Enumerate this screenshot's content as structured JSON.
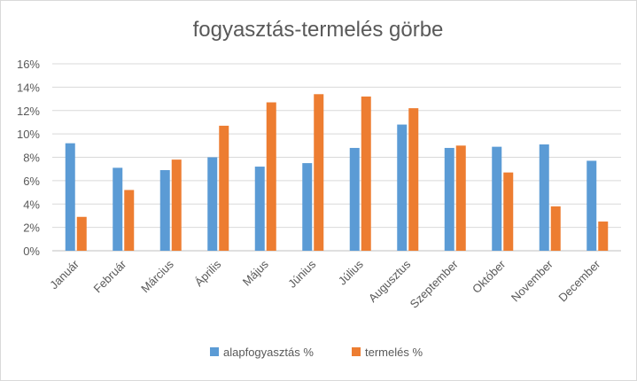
{
  "chart_data": {
    "type": "bar",
    "title": "fogyasztás-termelés görbe",
    "xlabel": "",
    "ylabel": "",
    "categories": [
      "Január",
      "Február",
      "Március",
      "Április",
      "Május",
      "Június",
      "Július",
      "Augusztus",
      "Szeptember",
      "Október",
      "November",
      "December"
    ],
    "series": [
      {
        "name": "alapfogyasztás %",
        "color": "#5b9bd5",
        "values": [
          9.2,
          7.1,
          6.9,
          8.0,
          7.2,
          7.5,
          8.8,
          10.8,
          8.8,
          8.9,
          9.1,
          7.7
        ]
      },
      {
        "name": "termelés %",
        "color": "#ed7d31",
        "values": [
          2.9,
          5.2,
          7.8,
          10.7,
          12.7,
          13.4,
          13.2,
          12.2,
          9.0,
          6.7,
          3.8,
          2.5
        ]
      }
    ],
    "ylim": [
      0,
      16
    ],
    "yticks": [
      0,
      2,
      4,
      6,
      8,
      10,
      12,
      14,
      16
    ],
    "ytick_suffix": "%",
    "grid": true,
    "legend_position": "bottom"
  }
}
